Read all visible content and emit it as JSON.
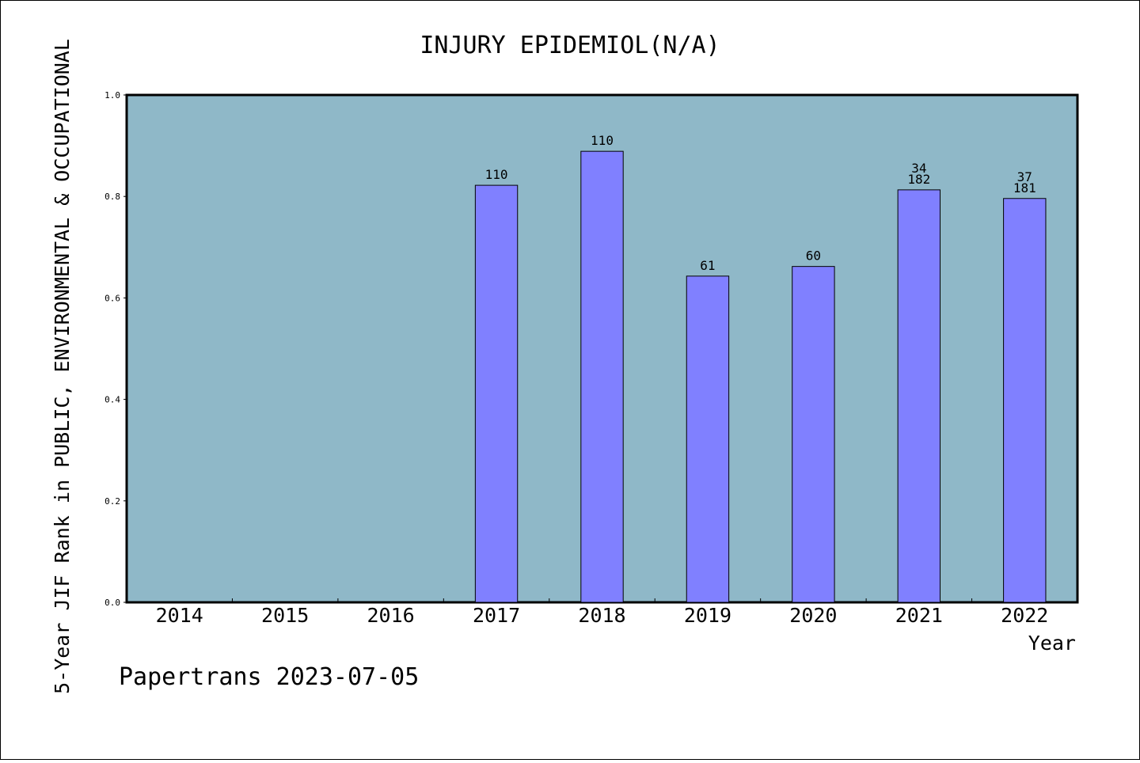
{
  "chart_data": {
    "type": "bar",
    "title": "INJURY EPIDEMIOL(N/A)",
    "xlabel": "Year",
    "ylabel": "5-Year JIF Rank in PUBLIC, ENVIRONMENTAL & OCCUPATIONAL",
    "ylim": [
      0,
      1.0
    ],
    "yticks": [
      "0.0",
      "0.2",
      "0.4",
      "0.6",
      "0.8",
      "1.0"
    ],
    "categories": [
      "2014",
      "2015",
      "2016",
      "2017",
      "2018",
      "2019",
      "2020",
      "2021",
      "2022"
    ],
    "values": [
      null,
      null,
      null,
      0.822,
      0.889,
      0.643,
      0.662,
      0.813,
      0.796
    ],
    "bar_labels": [
      [],
      [],
      [],
      [
        "110"
      ],
      [
        "110"
      ],
      [
        "61"
      ],
      [
        "60"
      ],
      [
        "34",
        "182"
      ],
      [
        "37",
        "181"
      ]
    ],
    "grid": false,
    "colors": {
      "plot_bg": "#8fb8c8",
      "bar": "#8080ff",
      "axis": "#000000"
    }
  },
  "footer": {
    "watermark": "Papertrans 2023-07-05"
  }
}
